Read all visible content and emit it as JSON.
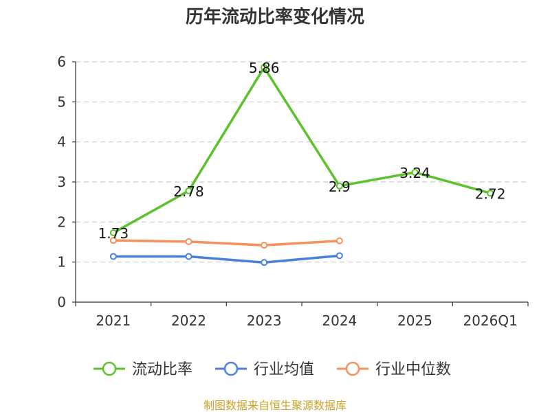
{
  "chart_data": {
    "type": "line",
    "title": "历年流动比率变化情况",
    "categories": [
      "2021",
      "2022",
      "2023",
      "2024",
      "2025",
      "2026Q1"
    ],
    "ylim": [
      0,
      6
    ],
    "yticks": [
      0,
      1,
      2,
      3,
      4,
      5,
      6
    ],
    "grid": true,
    "legend_position": "bottom",
    "series": [
      {
        "name": "流动比率",
        "color": "#5cc22b",
        "values": [
          1.73,
          2.78,
          5.86,
          2.9,
          3.24,
          2.72
        ],
        "show_labels": true,
        "labels": [
          "1.73",
          "2.78",
          "5.86",
          "2.9",
          "3.24",
          "2.72"
        ]
      },
      {
        "name": "行业均值",
        "color": "#4a7fdb",
        "values": [
          1.14,
          1.14,
          0.99,
          1.16,
          null,
          null
        ],
        "show_labels": false
      },
      {
        "name": "行业中位数",
        "color": "#f6915c",
        "values": [
          1.54,
          1.51,
          1.42,
          1.53,
          null,
          null
        ],
        "show_labels": false
      }
    ]
  },
  "footer": {
    "source_text": "制图数据来自恒生聚源数据库",
    "source_color": "#c9a227"
  }
}
